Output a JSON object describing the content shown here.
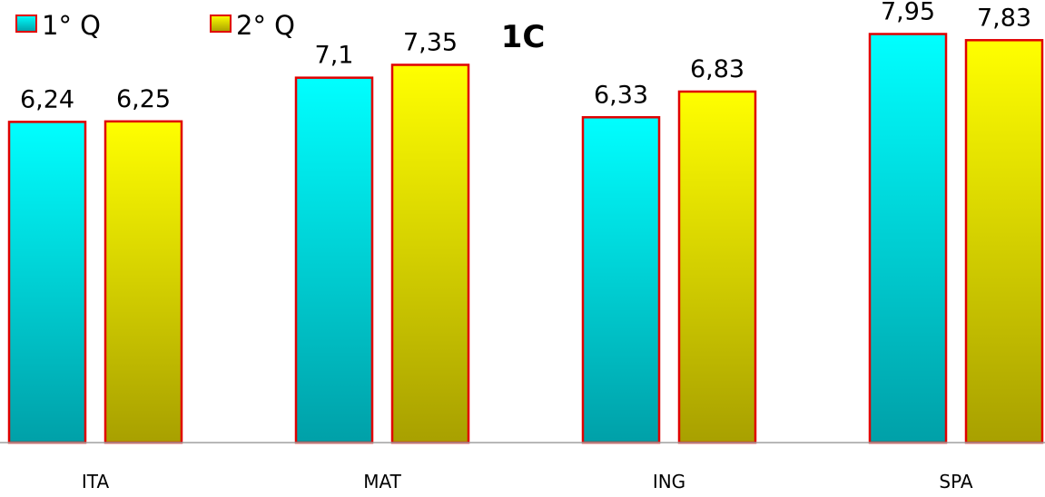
{
  "chart_data": {
    "type": "bar",
    "title": "1C",
    "categories": [
      "ITA",
      "MAT",
      "ING",
      "SPA"
    ],
    "series": [
      {
        "name": "1° Q",
        "values": [
          6.24,
          7.1,
          6.33,
          7.95
        ],
        "labels": [
          "6,24",
          "7,1",
          "6,33",
          "7,95"
        ],
        "color_top": "#00FFFF",
        "color_bottom": "#00A0A8"
      },
      {
        "name": "2° Q",
        "values": [
          6.25,
          7.35,
          6.83,
          7.83
        ],
        "labels": [
          "6,25",
          "7,35",
          "6,83",
          "7,83"
        ],
        "color_top": "#FFFF00",
        "color_bottom": "#A8A000"
      }
    ],
    "bar_border_color": "#E00000",
    "axis_color": "#A0A0A0",
    "xlabel": "",
    "ylabel": "",
    "ylim": [
      0,
      8.4
    ],
    "grid": false,
    "legend_position": "top-left"
  }
}
